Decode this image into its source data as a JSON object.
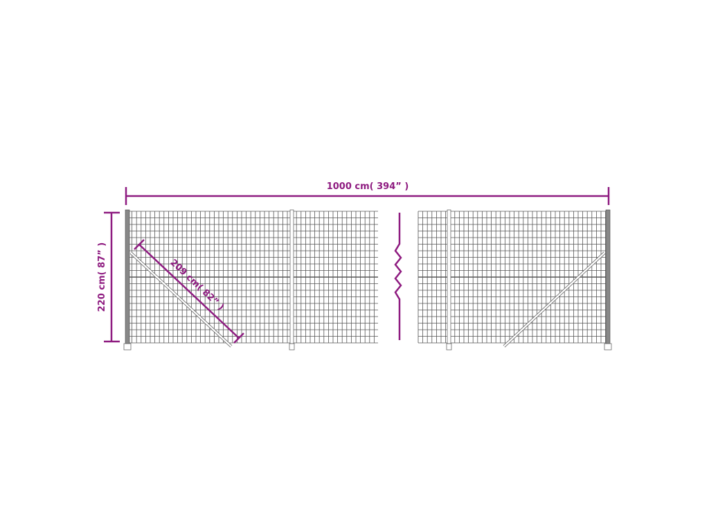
{
  "dimensions": {
    "width_label": "1000 cm( 394” )",
    "height_label": "220 cm( 87” )",
    "brace_label": "209 cm( 82” )"
  },
  "colors": {
    "dimension": "#8e1b80",
    "mesh": "#555555",
    "background": "#ffffff"
  }
}
